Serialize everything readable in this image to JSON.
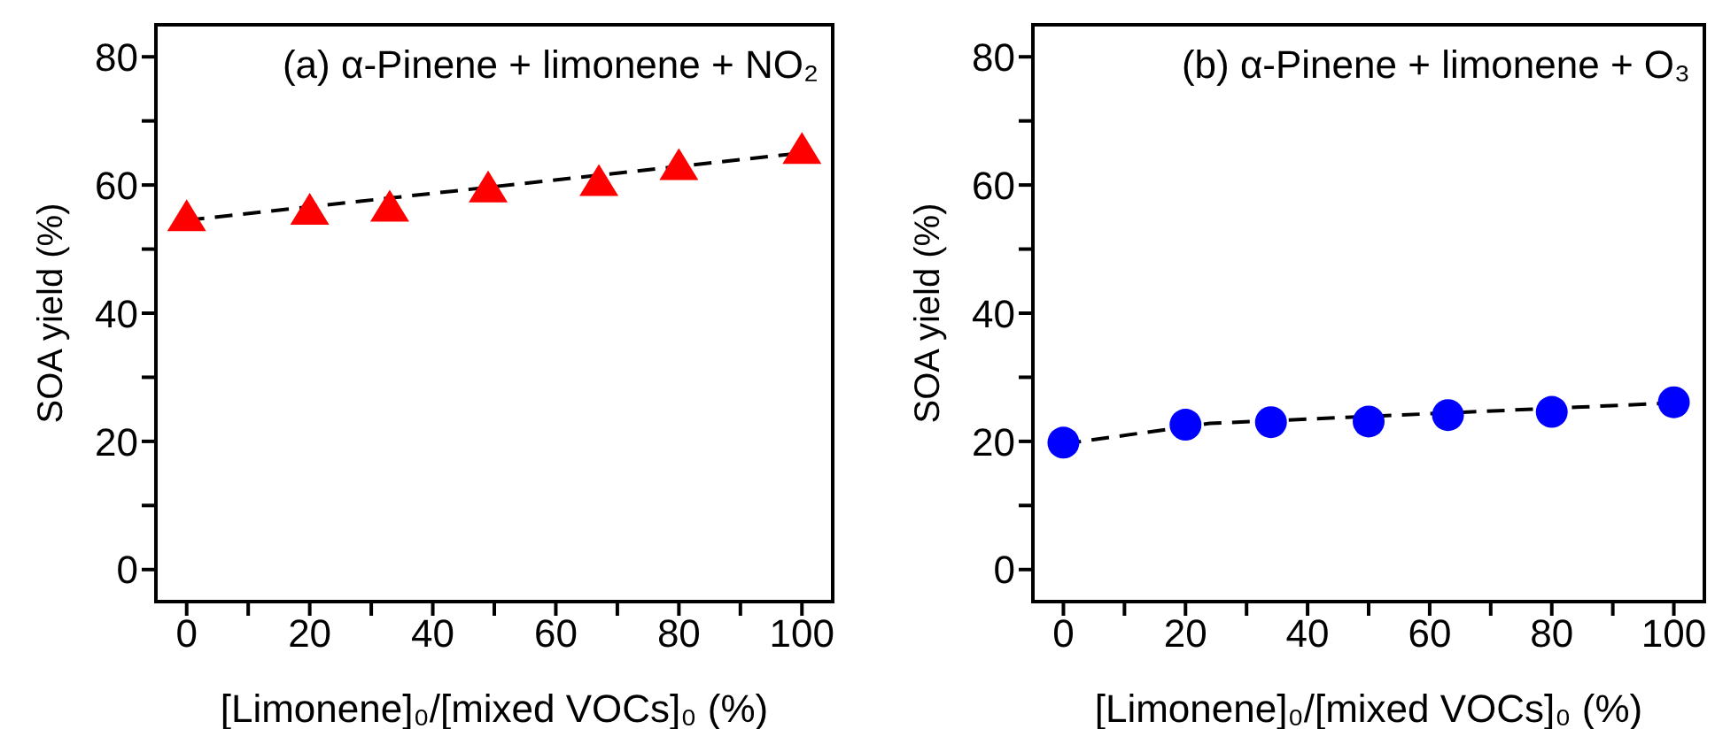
{
  "chart_data": [
    {
      "type": "scatter",
      "title": "(a) α-Pinene + limonene + NO₂",
      "xlabel": "[Limonene]₀/[mixed VOCs]₀ (%)",
      "ylabel": "SOA yield (%)",
      "xlim": [
        -5,
        105
      ],
      "ylim": [
        -5,
        85
      ],
      "xticks": [
        0,
        {
          "value": 10,
          "label": null
        },
        20,
        {
          "value": 30,
          "label": null
        },
        40,
        {
          "value": 50,
          "label": null
        },
        60,
        {
          "value": 70,
          "label": null
        },
        80,
        {
          "value": 90,
          "label": null
        },
        100
      ],
      "yticks": [
        0,
        {
          "value": 10,
          "label": null
        },
        20,
        {
          "value": 30,
          "label": null
        },
        40,
        {
          "value": 50,
          "label": null
        },
        60,
        {
          "value": 70,
          "label": null
        },
        80
      ],
      "series": [
        {
          "type": "line",
          "color": "#000000",
          "line_style": "dashed",
          "marker": "none",
          "x": [
            0,
            100
          ],
          "values": [
            54.5,
            65
          ]
        },
        {
          "color": "#ff0000",
          "marker": "triangle",
          "x": [
            0,
            20,
            33,
            49,
            67,
            80,
            100
          ],
          "values": [
            55,
            56,
            56.5,
            59.5,
            60.5,
            63,
            65.5
          ]
        }
      ]
    },
    {
      "type": "scatter",
      "title": "(b) α-Pinene + limonene + O₃",
      "xlabel": "[Limonene]₀/[mixed VOCs]₀ (%)",
      "ylabel": "SOA yield (%)",
      "xlim": [
        -5,
        105
      ],
      "ylim": [
        -5,
        85
      ],
      "xticks": [
        0,
        {
          "value": 10,
          "label": null
        },
        20,
        {
          "value": 30,
          "label": null
        },
        40,
        {
          "value": 50,
          "label": null
        },
        60,
        {
          "value": 70,
          "label": null
        },
        80,
        {
          "value": 90,
          "label": null
        },
        100
      ],
      "yticks": [
        0,
        {
          "value": 10,
          "label": null
        },
        20,
        {
          "value": 30,
          "label": null
        },
        40,
        {
          "value": 50,
          "label": null
        },
        60,
        {
          "value": 70,
          "label": null
        },
        80
      ],
      "series": [
        {
          "type": "line",
          "color": "#000000",
          "line_style": "dashed",
          "marker": "none",
          "x": [
            0,
            24,
            100
          ],
          "values": [
            19.6,
            22.8,
            26
          ]
        },
        {
          "color": "#0000ff",
          "marker": "circle",
          "x": [
            0,
            20,
            34,
            50,
            63,
            80,
            100
          ],
          "values": [
            19.8,
            22.6,
            23,
            23.1,
            24.1,
            24.6,
            26.1
          ]
        }
      ]
    }
  ]
}
